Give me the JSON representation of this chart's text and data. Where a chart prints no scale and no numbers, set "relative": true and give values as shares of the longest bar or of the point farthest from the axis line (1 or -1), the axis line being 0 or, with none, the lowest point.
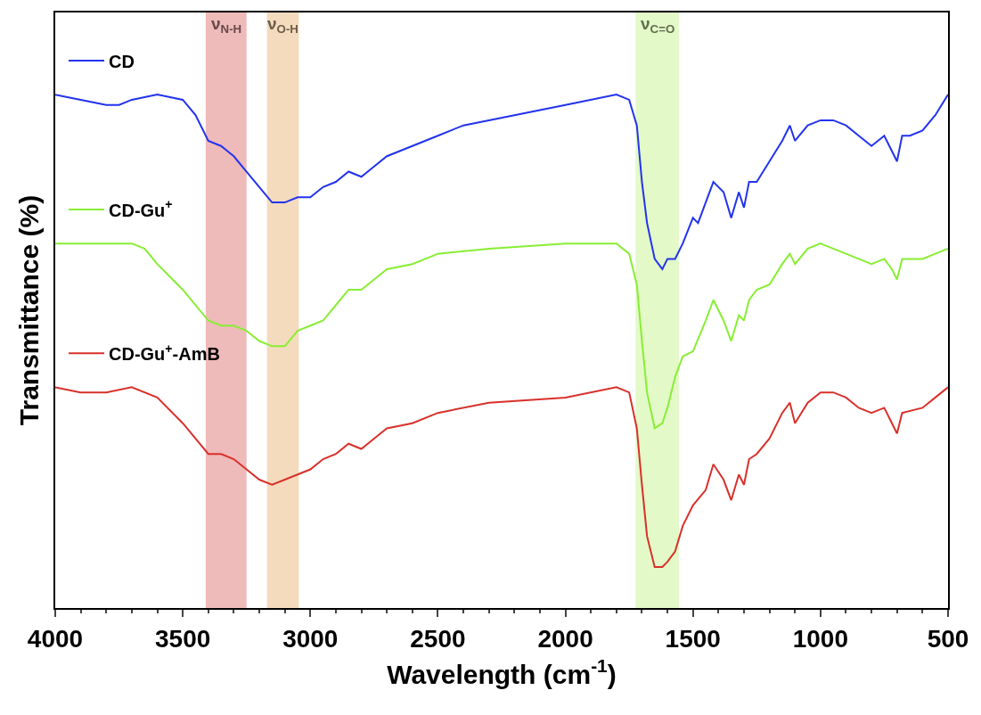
{
  "chart_data": {
    "type": "line",
    "relative": true,
    "xlabel": "Wavelength (cm$^{-1}$)",
    "ylabel": "Transmittance (%)",
    "xlim": [
      4000,
      500
    ],
    "xticks": [
      4000,
      3500,
      3000,
      2500,
      2000,
      1500,
      1000,
      500
    ],
    "grid": false,
    "legend": "left",
    "marker": "none",
    "line_style": "solid",
    "series": [
      {
        "name": "CD",
        "color": "#2233ee",
        "x": [
          4000,
          3900,
          3800,
          3750,
          3700,
          3600,
          3500,
          3450,
          3400,
          3350,
          3300,
          3250,
          3200,
          3150,
          3100,
          3050,
          3000,
          2950,
          2900,
          2850,
          2800,
          2750,
          2700,
          2600,
          2500,
          2400,
          2200,
          2000,
          1800,
          1750,
          1720,
          1700,
          1680,
          1650,
          1620,
          1600,
          1570,
          1540,
          1500,
          1480,
          1450,
          1420,
          1380,
          1350,
          1320,
          1300,
          1280,
          1250,
          1200,
          1150,
          1120,
          1100,
          1050,
          1000,
          950,
          900,
          850,
          800,
          750,
          720,
          700,
          680,
          650,
          600,
          550,
          500
        ],
        "values": [
          1.0,
          0.99,
          0.98,
          0.98,
          0.99,
          1.0,
          0.99,
          0.96,
          0.91,
          0.9,
          0.88,
          0.85,
          0.82,
          0.79,
          0.79,
          0.8,
          0.8,
          0.82,
          0.83,
          0.85,
          0.84,
          0.86,
          0.88,
          0.9,
          0.92,
          0.94,
          0.96,
          0.98,
          1.0,
          0.99,
          0.94,
          0.83,
          0.75,
          0.68,
          0.66,
          0.68,
          0.68,
          0.71,
          0.76,
          0.75,
          0.79,
          0.83,
          0.81,
          0.76,
          0.81,
          0.78,
          0.83,
          0.83,
          0.87,
          0.91,
          0.94,
          0.91,
          0.94,
          0.95,
          0.95,
          0.94,
          0.92,
          0.9,
          0.92,
          0.89,
          0.87,
          0.92,
          0.92,
          0.93,
          0.96,
          1.0
        ]
      },
      {
        "name": "CD-Gu$^{+}$",
        "color": "#88ee33",
        "x": [
          4000,
          3700,
          3650,
          3600,
          3500,
          3400,
          3350,
          3300,
          3250,
          3200,
          3150,
          3100,
          3050,
          3000,
          2950,
          2900,
          2850,
          2800,
          2750,
          2700,
          2600,
          2500,
          2300,
          2000,
          1800,
          1750,
          1720,
          1700,
          1680,
          1650,
          1620,
          1600,
          1570,
          1540,
          1500,
          1450,
          1420,
          1380,
          1350,
          1320,
          1300,
          1280,
          1250,
          1200,
          1150,
          1120,
          1100,
          1050,
          1000,
          950,
          900,
          850,
          800,
          750,
          720,
          700,
          680,
          600,
          550,
          500
        ],
        "values": [
          0.71,
          0.71,
          0.7,
          0.67,
          0.62,
          0.56,
          0.55,
          0.55,
          0.54,
          0.52,
          0.51,
          0.51,
          0.54,
          0.55,
          0.56,
          0.59,
          0.62,
          0.62,
          0.64,
          0.66,
          0.67,
          0.69,
          0.7,
          0.71,
          0.71,
          0.69,
          0.63,
          0.52,
          0.42,
          0.35,
          0.36,
          0.39,
          0.45,
          0.49,
          0.5,
          0.56,
          0.6,
          0.56,
          0.52,
          0.57,
          0.56,
          0.6,
          0.62,
          0.63,
          0.67,
          0.69,
          0.67,
          0.7,
          0.71,
          0.7,
          0.69,
          0.68,
          0.67,
          0.68,
          0.66,
          0.64,
          0.68,
          0.68,
          0.69,
          0.7
        ]
      },
      {
        "name": "CD-Gu$^{+}$-AmB",
        "color": "#d8312a",
        "x": [
          4000,
          3900,
          3800,
          3700,
          3600,
          3500,
          3450,
          3400,
          3350,
          3300,
          3250,
          3200,
          3150,
          3100,
          3050,
          3000,
          2950,
          2900,
          2850,
          2800,
          2750,
          2700,
          2600,
          2500,
          2300,
          2000,
          1800,
          1750,
          1720,
          1700,
          1680,
          1650,
          1620,
          1600,
          1570,
          1540,
          1500,
          1450,
          1420,
          1380,
          1350,
          1320,
          1300,
          1280,
          1250,
          1200,
          1150,
          1120,
          1100,
          1050,
          1000,
          950,
          900,
          850,
          800,
          750,
          720,
          700,
          680,
          600,
          550,
          500
        ],
        "values": [
          0.43,
          0.42,
          0.42,
          0.43,
          0.41,
          0.36,
          0.33,
          0.3,
          0.3,
          0.29,
          0.27,
          0.25,
          0.24,
          0.25,
          0.26,
          0.27,
          0.29,
          0.3,
          0.32,
          0.31,
          0.33,
          0.35,
          0.36,
          0.38,
          0.4,
          0.41,
          0.43,
          0.42,
          0.35,
          0.24,
          0.14,
          0.08,
          0.08,
          0.09,
          0.11,
          0.16,
          0.2,
          0.23,
          0.28,
          0.25,
          0.21,
          0.26,
          0.24,
          0.29,
          0.3,
          0.33,
          0.38,
          0.4,
          0.36,
          0.4,
          0.42,
          0.42,
          0.41,
          0.39,
          0.38,
          0.39,
          0.36,
          0.34,
          0.38,
          0.39,
          0.41,
          0.43
        ]
      }
    ],
    "bands": [
      {
        "axis": "x",
        "from": 3410,
        "to": 3250,
        "label": "ν$_{N-H}$",
        "color": "#e9a3a3"
      },
      {
        "axis": "x",
        "from": 3170,
        "to": 3045,
        "label": "ν$_{O-H}$",
        "color": "#f1cfa8"
      },
      {
        "axis": "x",
        "from": 1725,
        "to": 1555,
        "label": "ν$_{C=O}$",
        "color": "#d9f7b5"
      }
    ]
  }
}
